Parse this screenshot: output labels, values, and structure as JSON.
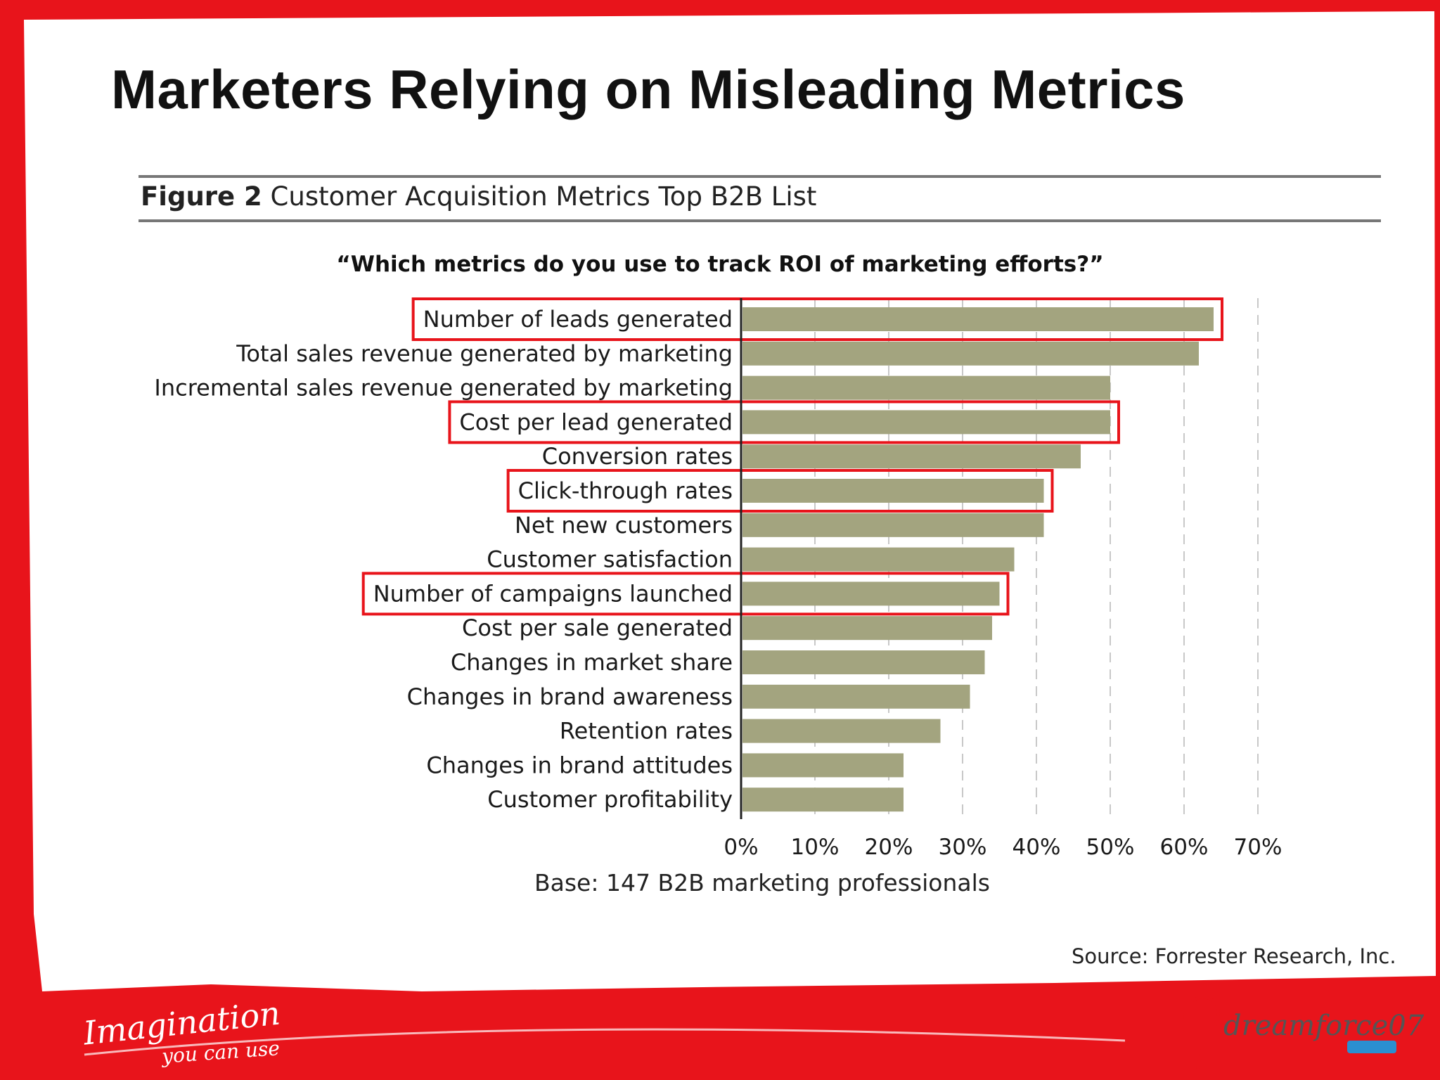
{
  "slide": {
    "title": "Marketers Relying on Misleading Metrics",
    "figure_label": "Figure 2",
    "figure_caption": "Customer Acquisition Metrics Top B2B List",
    "question": "“Which metrics do you use to track ROI of marketing efforts?”",
    "base_note": "Base: 147 B2B marketing professionals",
    "source_note": "Source: Forrester Research, Inc.",
    "tagline": "Imagination",
    "tagline_sub": "you can use",
    "brand_logo_text": "dreamforce07"
  },
  "colors": {
    "background_red": "#e8141b",
    "bar": "#a3a47f",
    "highlight_box": "#e8141b",
    "axis": "#222222",
    "grid": "#c8c8c8"
  },
  "chart_data": {
    "type": "bar",
    "orientation": "horizontal",
    "title": "“Which metrics do you use to track ROI of marketing efforts?”",
    "xlabel": "",
    "ylabel": "",
    "xlim": [
      0,
      70
    ],
    "x_ticks": [
      "0%",
      "10%",
      "20%",
      "30%",
      "40%",
      "50%",
      "60%",
      "70%"
    ],
    "grid": true,
    "categories": [
      "Number of leads generated",
      "Total sales revenue generated by marketing",
      "Incremental sales revenue generated by marketing",
      "Cost per lead generated",
      "Conversion rates",
      "Click-through rates",
      "Net new customers",
      "Customer satisfaction",
      "Number of campaigns launched",
      "Cost per sale generated",
      "Changes in market share",
      "Changes in brand awareness",
      "Retention rates",
      "Changes in brand attitudes",
      "Customer profitability"
    ],
    "values": [
      64,
      62,
      50,
      50,
      46,
      41,
      41,
      37,
      35,
      34,
      33,
      31,
      27,
      22,
      22
    ],
    "highlighted": [
      "Number of leads generated",
      "Cost per lead generated",
      "Click-through rates",
      "Number of campaigns launched"
    ]
  }
}
